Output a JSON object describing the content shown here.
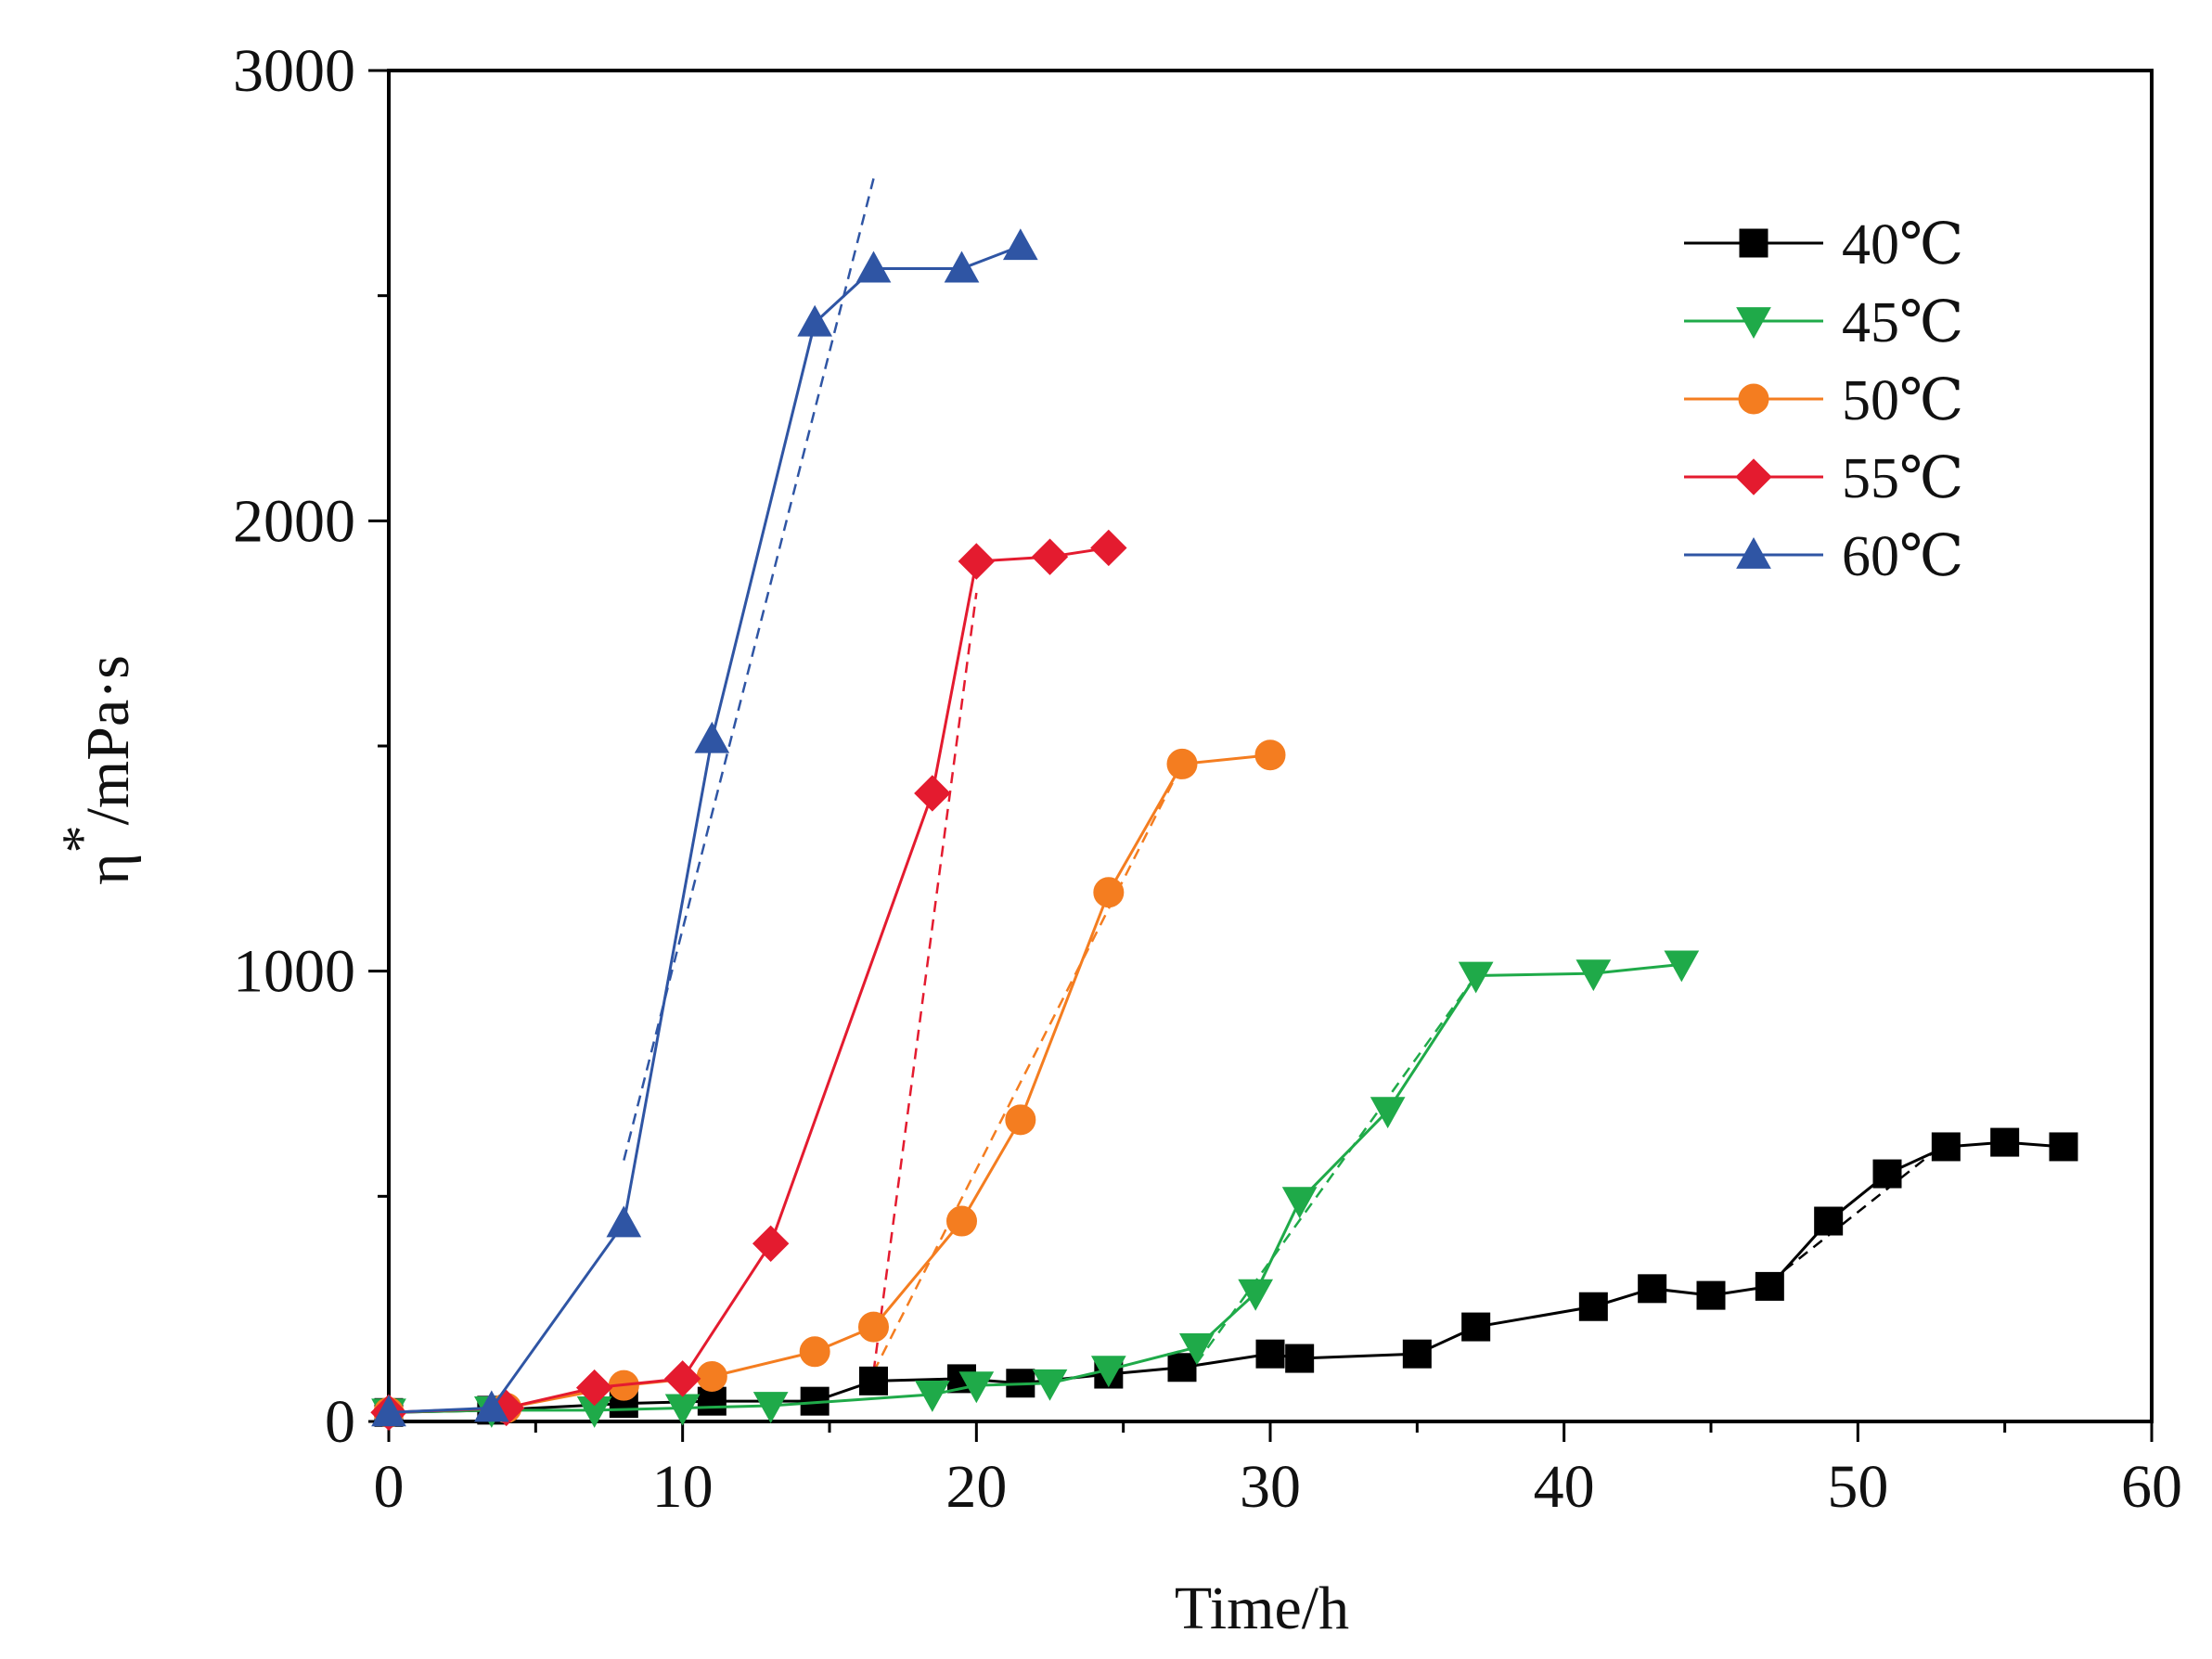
{
  "chart_data": {
    "type": "line",
    "title": "",
    "xlabel": "Time/h",
    "ylabel": "η*/mPa·s",
    "ylabel_main": "η",
    "ylabel_sup": "*",
    "ylabel_unit": "/mPa·s",
    "xlim": [
      0,
      60
    ],
    "ylim": [
      0,
      3000
    ],
    "xticks": [
      0,
      10,
      20,
      30,
      40,
      50,
      60
    ],
    "yticks": [
      0,
      1000,
      2000,
      3000
    ],
    "grid": false,
    "legend_position": "top-right",
    "series": [
      {
        "name": "40℃",
        "color": "#000000",
        "marker": "square",
        "x": [
          0,
          3.5,
          8,
          11,
          14.5,
          16.5,
          19.5,
          21.5,
          24.5,
          27,
          30,
          31,
          35,
          37,
          41,
          43,
          45,
          47,
          49,
          51,
          53,
          55,
          57
        ],
        "y": [
          20,
          25,
          40,
          45,
          45,
          90,
          95,
          85,
          105,
          120,
          150,
          140,
          150,
          210,
          255,
          295,
          280,
          300,
          445,
          550,
          610,
          620,
          610
        ],
        "fit": {
          "x": [
            47,
            53
          ],
          "y": [
            310,
            620
          ]
        }
      },
      {
        "name": "45℃",
        "color": "#1faa49",
        "marker": "triangle-down",
        "x": [
          0,
          3.5,
          7,
          10,
          13,
          18.5,
          20,
          22.5,
          24.5,
          27.5,
          29.5,
          31,
          34,
          37,
          41,
          44
        ],
        "y": [
          20,
          25,
          25,
          30,
          35,
          60,
          80,
          85,
          115,
          165,
          285,
          490,
          690,
          990,
          995,
          1015
        ],
        "fit": {
          "x": [
            27.5,
            37
          ],
          "y": [
            130,
            990
          ]
        }
      },
      {
        "name": "50℃",
        "color": "#f47d20",
        "marker": "circle",
        "x": [
          0,
          4,
          8,
          11,
          14.5,
          16.5,
          19.5,
          21.5,
          24.5,
          27,
          30
        ],
        "y": [
          20,
          30,
          80,
          100,
          155,
          210,
          445,
          670,
          1175,
          1460,
          1480
        ],
        "fit": {
          "x": [
            16.5,
            27
          ],
          "y": [
            110,
            1460
          ]
        }
      },
      {
        "name": "55℃",
        "color": "#e41b2f",
        "marker": "diamond",
        "x": [
          0,
          4,
          7,
          10,
          13,
          18.5,
          20,
          22.5,
          24.5
        ],
        "y": [
          20,
          30,
          75,
          95,
          395,
          1395,
          1910,
          1920,
          1940
        ],
        "fit": {
          "x": [
            16.5,
            20
          ],
          "y": [
            110,
            1840
          ]
        }
      },
      {
        "name": "60℃",
        "color": "#2f55a4",
        "marker": "triangle-up",
        "x": [
          0,
          3.5,
          8,
          11,
          14.5,
          16.5,
          19.5,
          21.5
        ],
        "y": [
          20,
          30,
          440,
          1515,
          2440,
          2560,
          2560,
          2610
        ],
        "fit": {
          "x": [
            8,
            16.5
          ],
          "y": [
            580,
            2760
          ]
        }
      }
    ]
  }
}
